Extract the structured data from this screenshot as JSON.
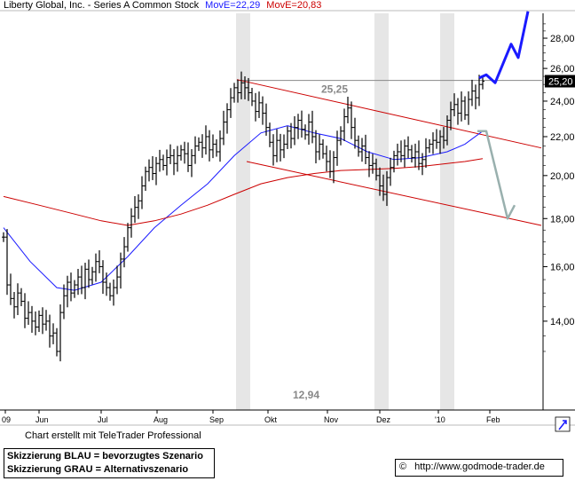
{
  "header": {
    "title": "Liberty Global, Inc. - Series A Common Stock",
    "ma_blue_label": "MovE=22,29",
    "ma_red_label": "MovE=20,83",
    "colors": {
      "ma_blue": "#1a1aff",
      "ma_red": "#cc0000"
    }
  },
  "chart_data": {
    "type": "candlestick",
    "y_axis": {
      "side": "right",
      "range": [
        12.5,
        29.8
      ],
      "scale": "log",
      "ticks": [
        "28,00",
        "26,00",
        "24,00",
        "22,00",
        "20,00",
        "18,00",
        "16,00",
        "14,00"
      ],
      "tick_values": [
        28,
        26,
        24,
        22,
        20,
        18,
        16,
        14
      ]
    },
    "current_price_label": "25,20",
    "current_price": 25.2,
    "x_axis": {
      "labels": [
        "09",
        "Jun",
        "Jul",
        "Aug",
        "Sep",
        "Okt",
        "Nov",
        "Dez",
        "'10",
        "Feb"
      ]
    },
    "annotations": {
      "high_label": "25,25",
      "high_value": 25.25,
      "low_label": "12,94",
      "low_value": 12.94
    },
    "close_series": [
      [
        0,
        17.2
      ],
      [
        4,
        15.3
      ],
      [
        8,
        14.8
      ],
      [
        12,
        14.5
      ],
      [
        16,
        15.0
      ],
      [
        20,
        14.7
      ],
      [
        24,
        14.1
      ],
      [
        28,
        14.3
      ],
      [
        32,
        14.0
      ],
      [
        36,
        13.8
      ],
      [
        40,
        14.2
      ],
      [
        44,
        13.9
      ],
      [
        48,
        14.0
      ],
      [
        52,
        13.5
      ],
      [
        56,
        13.6
      ],
      [
        60,
        13.0
      ],
      [
        64,
        14.3
      ],
      [
        68,
        14.9
      ],
      [
        72,
        15.4
      ],
      [
        76,
        15.0
      ],
      [
        80,
        15.3
      ],
      [
        84,
        15.6
      ],
      [
        88,
        15.2
      ],
      [
        92,
        15.9
      ],
      [
        96,
        15.5
      ],
      [
        100,
        15.8
      ],
      [
        104,
        16.2
      ],
      [
        108,
        16.0
      ],
      [
        112,
        15.4
      ],
      [
        116,
        15.2
      ],
      [
        120,
        14.9
      ],
      [
        124,
        15.2
      ],
      [
        128,
        15.6
      ],
      [
        132,
        16.3
      ],
      [
        136,
        16.8
      ],
      [
        140,
        17.6
      ],
      [
        144,
        18.1
      ],
      [
        148,
        18.5
      ],
      [
        152,
        18.8
      ],
      [
        156,
        19.5
      ],
      [
        160,
        20.2
      ],
      [
        164,
        20.4
      ],
      [
        168,
        20.1
      ],
      [
        172,
        20.6
      ],
      [
        176,
        20.8
      ],
      [
        180,
        20.5
      ],
      [
        184,
        20.9
      ],
      [
        188,
        21.0
      ],
      [
        192,
        20.6
      ],
      [
        196,
        21.0
      ],
      [
        200,
        21.3
      ],
      [
        204,
        21.1
      ],
      [
        208,
        20.5
      ],
      [
        212,
        21.0
      ],
      [
        216,
        21.5
      ],
      [
        220,
        21.7
      ],
      [
        224,
        21.4
      ],
      [
        228,
        22.0
      ],
      [
        232,
        21.3
      ],
      [
        236,
        21.6
      ],
      [
        240,
        21.2
      ],
      [
        244,
        21.9
      ],
      [
        248,
        22.8
      ],
      [
        252,
        23.5
      ],
      [
        256,
        24.2
      ],
      [
        260,
        24.8
      ],
      [
        264,
        24.5
      ],
      [
        268,
        25.1
      ],
      [
        272,
        24.8
      ],
      [
        276,
        24.5
      ],
      [
        280,
        24.0
      ],
      [
        284,
        23.4
      ],
      [
        288,
        23.9
      ],
      [
        292,
        23.3
      ],
      [
        296,
        22.5
      ],
      [
        300,
        21.7
      ],
      [
        304,
        21.0
      ],
      [
        308,
        21.8
      ],
      [
        312,
        21.3
      ],
      [
        316,
        21.6
      ],
      [
        320,
        22.3
      ],
      [
        324,
        21.9
      ],
      [
        328,
        22.5
      ],
      [
        332,
        22.9
      ],
      [
        336,
        22.4
      ],
      [
        340,
        22.1
      ],
      [
        344,
        22.8
      ],
      [
        348,
        22.0
      ],
      [
        352,
        21.2
      ],
      [
        356,
        21.6
      ],
      [
        360,
        21.1
      ],
      [
        364,
        20.7
      ],
      [
        368,
        20.2
      ],
      [
        372,
        20.9
      ],
      [
        376,
        21.8
      ],
      [
        380,
        22.3
      ],
      [
        384,
        23.1
      ],
      [
        388,
        23.6
      ],
      [
        392,
        22.5
      ],
      [
        396,
        21.8
      ],
      [
        400,
        21.2
      ],
      [
        404,
        21.5
      ],
      [
        408,
        20.9
      ],
      [
        412,
        20.5
      ],
      [
        416,
        20.6
      ],
      [
        420,
        20.0
      ],
      [
        424,
        19.5
      ],
      [
        428,
        19.1
      ],
      [
        432,
        19.9
      ],
      [
        436,
        20.4
      ],
      [
        440,
        21.0
      ],
      [
        444,
        21.2
      ],
      [
        448,
        21.0
      ],
      [
        452,
        21.5
      ],
      [
        456,
        21.3
      ],
      [
        460,
        20.9
      ],
      [
        464,
        21.2
      ],
      [
        468,
        20.6
      ],
      [
        472,
        20.8
      ],
      [
        476,
        21.4
      ],
      [
        480,
        21.6
      ],
      [
        484,
        21.8
      ],
      [
        488,
        21.7
      ],
      [
        492,
        22.0
      ],
      [
        496,
        21.8
      ],
      [
        500,
        22.9
      ],
      [
        504,
        23.5
      ],
      [
        508,
        23.8
      ],
      [
        512,
        23.3
      ],
      [
        516,
        24.0
      ],
      [
        520,
        23.2
      ],
      [
        524,
        24.1
      ],
      [
        528,
        24.6
      ],
      [
        532,
        24.2
      ],
      [
        536,
        25.0
      ],
      [
        540,
        25.2
      ]
    ],
    "moving_averages": [
      {
        "name": "MovE=22,29",
        "color": "#1a1aff",
        "points": [
          [
            0,
            17.6
          ],
          [
            30,
            16.2
          ],
          [
            60,
            15.2
          ],
          [
            80,
            15.1
          ],
          [
            110,
            15.4
          ],
          [
            140,
            16.4
          ],
          [
            170,
            17.6
          ],
          [
            200,
            18.6
          ],
          [
            230,
            19.6
          ],
          [
            260,
            21.0
          ],
          [
            290,
            22.2
          ],
          [
            320,
            22.6
          ],
          [
            350,
            22.2
          ],
          [
            380,
            21.9
          ],
          [
            410,
            21.2
          ],
          [
            440,
            20.8
          ],
          [
            470,
            20.9
          ],
          [
            500,
            21.2
          ],
          [
            520,
            21.6
          ],
          [
            540,
            22.3
          ]
        ]
      },
      {
        "name": "MovE=20,83",
        "color": "#cc0000",
        "points": [
          [
            0,
            19.0
          ],
          [
            40,
            18.6
          ],
          [
            80,
            18.2
          ],
          [
            110,
            17.9
          ],
          [
            140,
            17.7
          ],
          [
            170,
            17.9
          ],
          [
            200,
            18.2
          ],
          [
            230,
            18.6
          ],
          [
            260,
            19.1
          ],
          [
            290,
            19.6
          ],
          [
            320,
            19.9
          ],
          [
            350,
            20.1
          ],
          [
            380,
            20.25
          ],
          [
            410,
            20.3
          ],
          [
            440,
            20.35
          ],
          [
            470,
            20.45
          ],
          [
            500,
            20.6
          ],
          [
            520,
            20.7
          ],
          [
            540,
            20.85
          ]
        ]
      }
    ],
    "trend_channel": {
      "color": "#cc0000",
      "upper": [
        [
          263,
          25.3
        ],
        [
          610,
          21.4
        ]
      ],
      "lower": [
        [
          274,
          20.7
        ],
        [
          610,
          17.7
        ]
      ]
    },
    "resistance_line": {
      "color": "#888888",
      "value": 25.25,
      "from_x": 263,
      "to_x": 612
    },
    "scenarios": [
      {
        "name": "Skizzierung BLAU = bevorzugtes Szenario",
        "color": "#1a1aff",
        "points": [
          [
            540,
            25.4
          ],
          [
            548,
            25.6
          ],
          [
            558,
            25.1
          ],
          [
            576,
            27.6
          ],
          [
            584,
            26.7
          ],
          [
            595,
            29.9
          ]
        ]
      },
      {
        "name": "Skizzierung GRAU = Alternativszenario",
        "color": "#99b0ae",
        "points": [
          [
            538,
            22.3
          ],
          [
            548,
            22.3
          ],
          [
            572,
            18.0
          ],
          [
            580,
            18.6
          ]
        ]
      }
    ],
    "shaded_periods_x": [
      [
        262,
        278
      ],
      [
        418,
        434
      ],
      [
        492,
        508
      ]
    ]
  },
  "footer": {
    "credit": "Chart erstellt mit TeleTrader Professional",
    "legend_blue": "Skizzierung BLAU = bevorzugtes Szenario",
    "legend_grey": "Skizzierung GRAU = Alternativszenario",
    "source": "http://www.godmode-trader.de",
    "copyright_symbol": "©"
  }
}
